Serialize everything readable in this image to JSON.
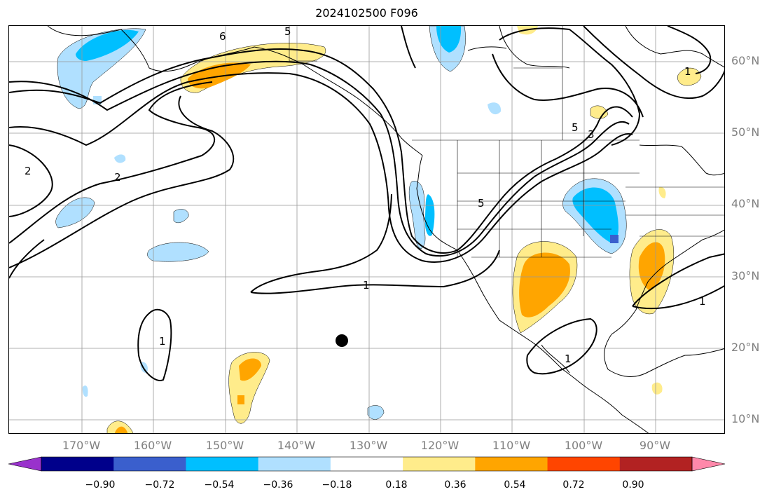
{
  "title": "2024102500 F096",
  "lat_labels": [
    "60°N",
    "50°N",
    "40°N",
    "30°N",
    "20°N",
    "10°N"
  ],
  "lon_labels": [
    "170°W",
    "160°W",
    "150°W",
    "140°W",
    "130°W",
    "120°W",
    "110°W",
    "100°W",
    "90°W"
  ],
  "colorbar": {
    "ticks": [
      "−0.90",
      "−0.72",
      "−0.54",
      "−0.36",
      "−0.18",
      "0.18",
      "0.36",
      "0.54",
      "0.72",
      "0.90"
    ],
    "colors": [
      "#9932CC",
      "#00008B",
      "#3A5FCD",
      "#00BFFF",
      "#B0E0FF",
      "#FFFFFF",
      "#FFEC8B",
      "#FFA500",
      "#FF4500",
      "#B22222",
      "#FF88AA"
    ]
  },
  "contour_labels": [
    "6",
    "5",
    "5",
    "3",
    "2",
    "2",
    "1",
    "1",
    "1",
    "1",
    "1",
    "5"
  ],
  "marker": "storm-center"
}
